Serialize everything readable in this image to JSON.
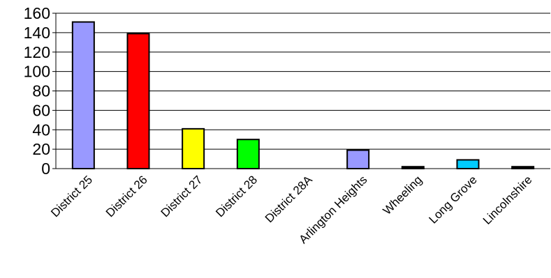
{
  "chart_data": {
    "type": "bar",
    "categories": [
      "District 25",
      "District 26",
      "District 27",
      "District 28",
      "District 28A",
      "Arlington Heights",
      "Wheeling",
      "Long Grove",
      "Lincolnshire"
    ],
    "values": [
      151,
      139,
      41,
      30,
      0,
      19,
      2,
      9,
      2
    ],
    "colors": [
      "#9999ff",
      "#ff0000",
      "#ffff00",
      "#00ff00",
      "#9999ff",
      "#9999ff",
      "#000000",
      "#00ccff",
      "#000000"
    ],
    "ylim": [
      0,
      160
    ],
    "yticks": [
      "0",
      "20",
      "40",
      "60",
      "80",
      "100",
      "120",
      "140",
      "160"
    ],
    "title": "",
    "xlabel": "",
    "ylabel": "",
    "grid": "horizontal",
    "legend": "none"
  }
}
